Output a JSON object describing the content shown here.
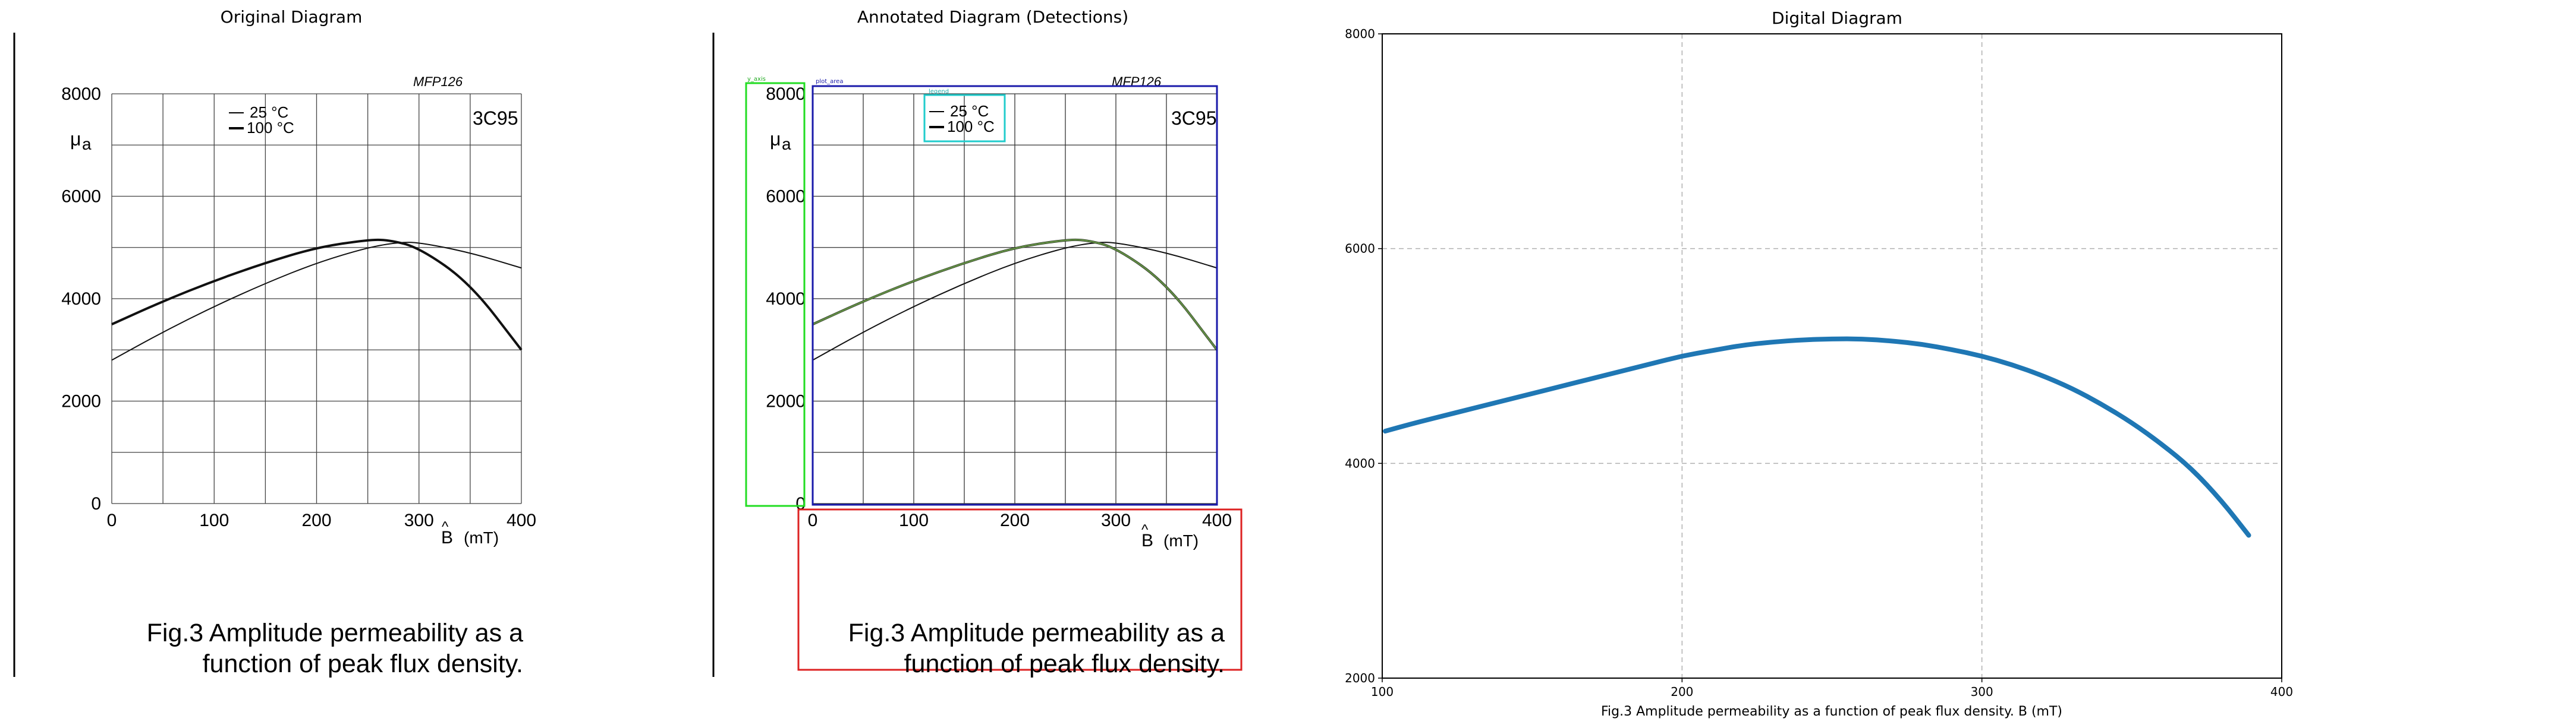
{
  "panels": {
    "original_title": "Original Diagram",
    "annotated_title": "Annotated Diagram (Detections)",
    "digital_title": "Digital Diagram"
  },
  "chart_data": [
    {
      "panel": "original",
      "type": "line",
      "title": "",
      "header_label": "MFP126",
      "material_label": "3C95",
      "ylabel_main": "μ",
      "ylabel_sub": "a",
      "xlabel_hat": "^",
      "xlabel_main": "B",
      "xlabel_units": "(mT)",
      "xlim": [
        0,
        400
      ],
      "ylim": [
        0,
        8000
      ],
      "x_ticks": [
        "0",
        "100",
        "200",
        "300",
        "400"
      ],
      "y_ticks": [
        "0",
        "2000",
        "4000",
        "6000",
        "8000"
      ],
      "grid": true,
      "legend": [
        {
          "label": "25 °C",
          "weight": "thin"
        },
        {
          "label": "100 °C",
          "weight": "thick"
        }
      ],
      "legend_position": "top-left",
      "series": [
        {
          "name": "25 °C",
          "x": [
            0,
            50,
            100,
            150,
            200,
            250,
            280,
            300,
            350,
            400
          ],
          "y": [
            2800,
            3350,
            3850,
            4300,
            4700,
            5000,
            5100,
            5100,
            4900,
            4600
          ]
        },
        {
          "name": "100 °C",
          "x": [
            0,
            50,
            100,
            150,
            200,
            250,
            270,
            300,
            350,
            400
          ],
          "y": [
            3500,
            3950,
            4350,
            4700,
            5000,
            5150,
            5150,
            5000,
            4300,
            3000
          ]
        }
      ],
      "caption_line1": "Fig.3  Amplitude permeability as a",
      "caption_line2": "function of peak flux density."
    },
    {
      "panel": "digital",
      "type": "line",
      "title": "Digital Diagram",
      "xlabel": "Fig.3 Amplitude permeability as a function of peak flux density. B (mT)",
      "xlim": [
        100,
        400
      ],
      "ylim": [
        2000,
        8000
      ],
      "x_ticks": [
        "100",
        "200",
        "300",
        "400"
      ],
      "y_ticks": [
        "2000",
        "4000",
        "6000",
        "8000"
      ],
      "grid": true,
      "color": "#1f77b4",
      "series": [
        {
          "x": [
            101,
            110,
            120,
            130,
            140,
            150,
            160,
            170,
            180,
            190,
            200,
            210,
            220,
            230,
            240,
            250,
            260,
            270,
            280,
            290,
            300,
            310,
            320,
            330,
            340,
            350,
            360,
            370,
            380,
            389
          ],
          "y": [
            4300,
            4370,
            4440,
            4510,
            4580,
            4650,
            4720,
            4790,
            4860,
            4930,
            5000,
            5050,
            5100,
            5130,
            5150,
            5160,
            5160,
            5140,
            5110,
            5060,
            5000,
            4920,
            4820,
            4700,
            4550,
            4380,
            4180,
            3950,
            3650,
            3330
          ]
        }
      ]
    }
  ],
  "annotation_tags": {
    "axis": "y_axis",
    "plot": "plot_area",
    "legend": "legend",
    "label": "y_axis"
  }
}
